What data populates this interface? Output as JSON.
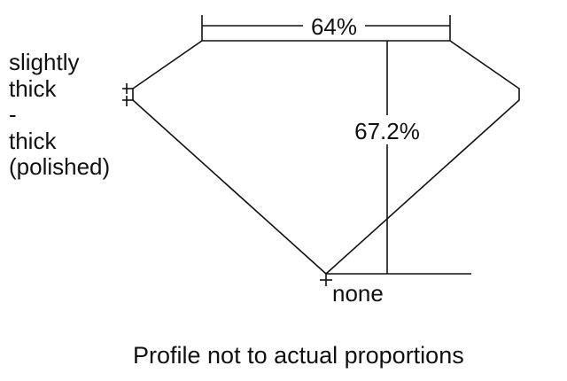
{
  "table_percent": "64%",
  "depth_percent": "67.2%",
  "culet_label": "none",
  "girdle_label_lines": [
    "slightly",
    "thick",
    "-",
    "thick",
    "(polished)"
  ],
  "note": "Profile not to actual proportions",
  "colors": {
    "line": "#111111",
    "background": "#ffffff"
  }
}
